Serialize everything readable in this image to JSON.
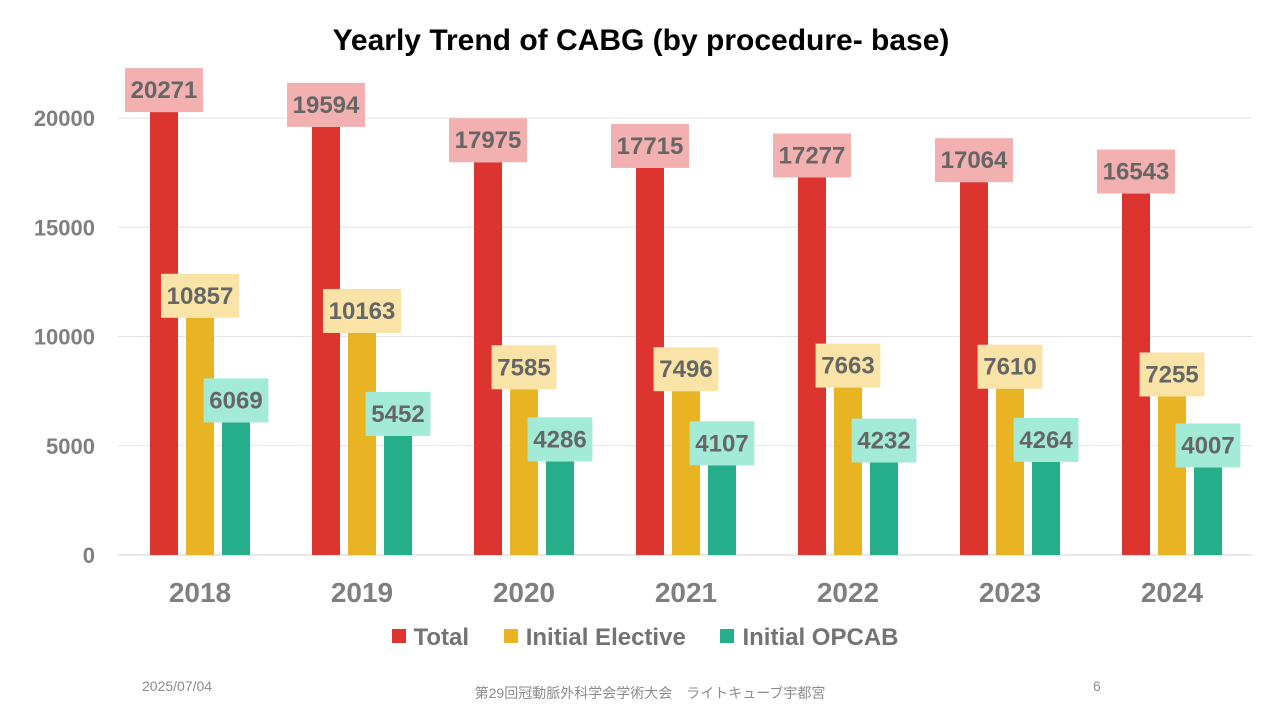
{
  "colors": {
    "total": "#dc3530",
    "elective": "#e9b423",
    "opcab": "#26ae8a",
    "total_label_bg": "#f2b1b0",
    "elective_label_bg": "#f9e3a7",
    "opcab_label_bg": "#a3ead7"
  },
  "chart_data": {
    "type": "bar",
    "title": "Yearly Trend of CABG (by procedure- base)",
    "categories": [
      "2018",
      "2019",
      "2020",
      "2021",
      "2022",
      "2023",
      "2024"
    ],
    "series": [
      {
        "name": "Total",
        "values": [
          20271,
          19594,
          17975,
          17715,
          17277,
          17064,
          16543
        ]
      },
      {
        "name": "Initial Elective",
        "values": [
          10857,
          10163,
          7585,
          7496,
          7663,
          7610,
          7255
        ]
      },
      {
        "name": "Initial OPCAB",
        "values": [
          6069,
          5452,
          4286,
          4107,
          4232,
          4264,
          4007
        ]
      }
    ],
    "yticks": [
      0,
      5000,
      10000,
      15000,
      20000
    ],
    "ylim": [
      0,
      20000
    ],
    "xlabel": "",
    "ylabel": "",
    "grid": true,
    "legend_position": "bottom"
  },
  "footer": {
    "date": "2025/07/04",
    "event": "第29回冠動脈外科学会学術大会　ライトキューブ宇都宮",
    "page": "6"
  }
}
